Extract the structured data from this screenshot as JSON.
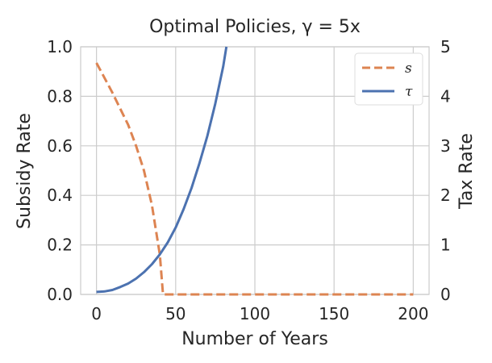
{
  "chart_data": {
    "type": "line",
    "title": "Optimal Policies, γ = 5x",
    "xlabel": "Number of Years",
    "ylabel_left": "Subsidy Rate",
    "ylabel_right": "Tax Rate",
    "xlim": [
      -10,
      210
    ],
    "ylim_left": [
      0,
      1
    ],
    "ylim_right": [
      0,
      5
    ],
    "xticks": [
      0,
      50,
      100,
      150,
      200
    ],
    "yticks_left": [
      0.0,
      0.2,
      0.4,
      0.6,
      0.8,
      1.0
    ],
    "yticks_right": [
      0,
      1,
      2,
      3,
      4,
      5
    ],
    "grid": true,
    "legend_position": "top-right",
    "series": [
      {
        "name": "s",
        "axis": "left",
        "style": "dashed",
        "color": "#dd8452",
        "x": [
          0,
          5,
          10,
          15,
          20,
          25,
          30,
          35,
          40,
          42,
          45,
          60,
          80,
          100,
          120,
          140,
          160,
          180,
          200
        ],
        "y": [
          0.935,
          0.875,
          0.815,
          0.75,
          0.685,
          0.6,
          0.5,
          0.36,
          0.16,
          0.0,
          0.0,
          0.0,
          0.0,
          0.0,
          0.0,
          0.0,
          0.0,
          0.0,
          0.0
        ]
      },
      {
        "name": "τ",
        "axis": "right",
        "style": "solid",
        "color": "#4c72b0",
        "x": [
          0,
          5,
          10,
          15,
          20,
          25,
          30,
          35,
          40,
          45,
          50,
          55,
          60,
          65,
          70,
          75,
          80,
          82
        ],
        "y": [
          0.05,
          0.06,
          0.09,
          0.15,
          0.22,
          0.32,
          0.45,
          0.61,
          0.81,
          1.05,
          1.35,
          1.72,
          2.15,
          2.65,
          3.2,
          3.85,
          4.6,
          5.0
        ]
      }
    ]
  }
}
